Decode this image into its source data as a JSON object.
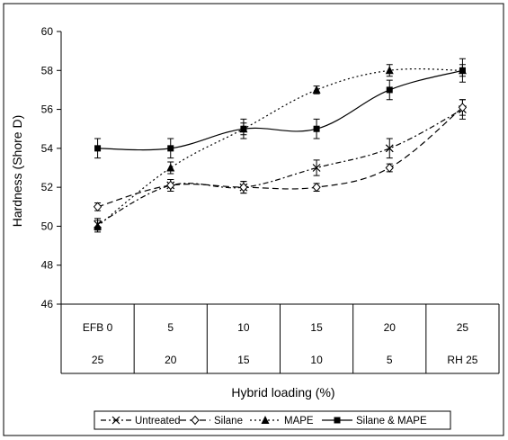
{
  "chart_data": {
    "type": "line",
    "title": "",
    "xlabel": "Hybrid loading (%)",
    "ylabel": "Hardness (Shore D)",
    "ylim": [
      46,
      60
    ],
    "yticks": [
      46,
      48,
      50,
      52,
      54,
      56,
      58,
      60
    ],
    "categories_row1": [
      "EFB 0",
      "5",
      "10",
      "15",
      "20",
      "25"
    ],
    "categories_row2": [
      "25",
      "20",
      "15",
      "10",
      "5",
      "RH 25"
    ],
    "grid": false,
    "legend_position": "bottom",
    "series": [
      {
        "name": "Untreated",
        "marker": "x",
        "dash": "dashdot",
        "values": [
          50.1,
          52.1,
          52.0,
          53.0,
          54.0,
          56.0
        ],
        "errors": [
          0.3,
          0.3,
          0.3,
          0.4,
          0.5,
          0.5
        ]
      },
      {
        "name": "Silane",
        "marker": "diamond",
        "dash": "dash",
        "values": [
          51.0,
          52.1,
          52.0,
          52.0,
          53.0,
          56.1
        ],
        "errors": [
          0.2,
          0.3,
          0.3,
          0.2,
          0.2,
          0.4
        ]
      },
      {
        "name": "MAPE",
        "marker": "triangle",
        "dash": "dot",
        "values": [
          50.0,
          53.0,
          55.0,
          57.0,
          58.0,
          58.0
        ],
        "errors": [
          0.3,
          0.3,
          0.3,
          0.2,
          0.3,
          0.3
        ]
      },
      {
        "name": "Silane & MAPE",
        "marker": "square",
        "dash": "solid",
        "values": [
          54.0,
          54.0,
          55.0,
          55.0,
          57.0,
          58.0
        ],
        "errors": [
          0.5,
          0.5,
          0.5,
          0.5,
          0.5,
          0.6
        ]
      }
    ]
  }
}
